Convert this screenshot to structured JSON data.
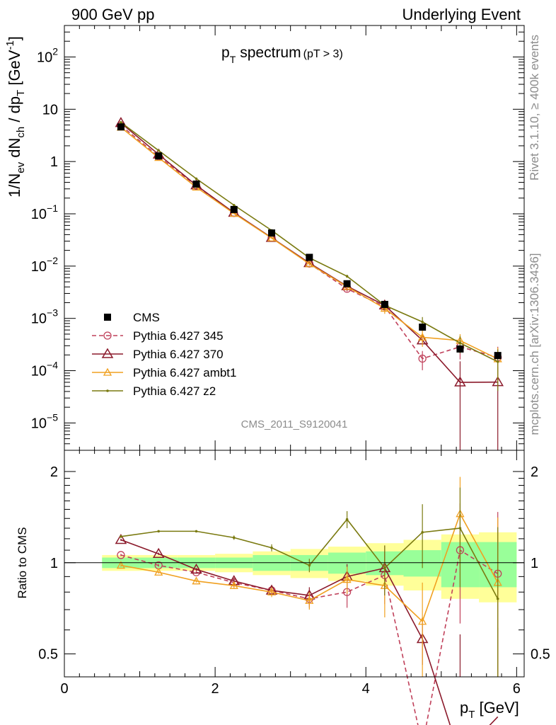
{
  "header": {
    "left": "900 GeV pp",
    "right": "Underlying Event",
    "plot_title": "p",
    "plot_title_sub": "T",
    "plot_title_rest": "spectrum",
    "plot_title_cut": "(pT >  3)",
    "analysis_id": "CMS_2011_S9120041",
    "rivet_note": "Rivet 3.1.10, ≥ 400k events",
    "mcplots_note": "mcplots.cern.ch [arXiv:1306.3436]"
  },
  "axes": {
    "ylabel_main": "1/N_ev dN_ch / dp_T [GeV^-1]",
    "ylabel_main_parts": [
      "1/N",
      "ev",
      " dN",
      "ch",
      " / dp",
      "T",
      " [GeV",
      "-1",
      "]"
    ],
    "ylabel_ratio": "Ratio to CMS",
    "xlabel": "p",
    "xlabel_sub": "T",
    "xlabel_rest": " [GeV]",
    "x_ticks": [
      "0",
      "2",
      "4",
      "6"
    ],
    "y_main_ticks": [
      "10",
      "10",
      "1",
      "10",
      "10",
      "10",
      "10",
      "10"
    ],
    "y_ratio_ticks": [
      "0.5",
      "1",
      "2"
    ]
  },
  "chart_data": {
    "type": "scatter",
    "x_range": [
      0,
      6.1
    ],
    "main": {
      "y_scale": "log",
      "y_range": [
        3e-06,
        400
      ],
      "y_ticks": [
        {
          "base": "10",
          "exp": "2",
          "value": 100
        },
        {
          "base": "10",
          "exp": "",
          "value": 10
        },
        {
          "base": "1",
          "exp": "",
          "value": 1
        },
        {
          "base": "10",
          "exp": "−1",
          "value": 0.1
        },
        {
          "base": "10",
          "exp": "−2",
          "value": 0.01
        },
        {
          "base": "10",
          "exp": "−3",
          "value": 0.001
        },
        {
          "base": "10",
          "exp": "−4",
          "value": 0.0001
        },
        {
          "base": "10",
          "exp": "−5",
          "value": 1e-05
        }
      ]
    },
    "ratio": {
      "y_scale": "log",
      "y_range": [
        0.42,
        2.35
      ],
      "y_ticks": [
        0.5,
        1,
        2
      ]
    },
    "x": [
      0.75,
      1.25,
      1.75,
      2.25,
      2.75,
      3.25,
      3.75,
      4.25,
      4.75,
      5.25,
      5.75
    ],
    "x_edges": [
      0.5,
      1.0,
      1.5,
      2.0,
      2.5,
      3.0,
      3.5,
      4.0,
      4.5,
      5.0,
      5.5,
      6.0
    ],
    "data": {
      "name": "CMS",
      "values": [
        4.6,
        1.28,
        0.37,
        0.121,
        0.043,
        0.0147,
        0.0046,
        0.00185,
        0.00068,
        0.00026,
        0.000195
      ],
      "band_inner": [
        0.04,
        0.04,
        0.04,
        0.04,
        0.06,
        0.06,
        0.08,
        0.09,
        0.1,
        0.17,
        0.17
      ],
      "band_outer": [
        0.06,
        0.06,
        0.06,
        0.07,
        0.09,
        0.11,
        0.13,
        0.16,
        0.19,
        0.24,
        0.26
      ]
    },
    "series": [
      {
        "name": "Pythia 6.427 345",
        "color": "#c0405a",
        "style": "dashed",
        "marker": "circle",
        "ratio": [
          1.06,
          0.98,
          0.93,
          0.86,
          0.81,
          0.76,
          0.8,
          0.91,
          0.25,
          1.1,
          0.92
        ],
        "ratio_err": [
          0.01,
          0.01,
          0.01,
          0.02,
          0.03,
          0.05,
          0.09,
          0.18,
          0.1,
          0.47,
          0.55
        ]
      },
      {
        "name": "Pythia 6.427 370",
        "color": "#8b1a2b",
        "style": "solid",
        "marker": "triangle-open",
        "ratio": [
          1.19,
          1.07,
          0.95,
          0.87,
          0.81,
          0.78,
          0.9,
          0.96,
          0.56,
          0.23,
          0.31
        ],
        "ratio_err": [
          0.01,
          0.01,
          0.01,
          0.02,
          0.03,
          0.05,
          0.09,
          0.18,
          0.1,
          0.35,
          0.3
        ]
      },
      {
        "name": "Pythia 6.427 ambt1",
        "color": "#f0a020",
        "style": "solid",
        "marker": "triangle-small",
        "ratio": [
          0.98,
          0.93,
          0.87,
          0.84,
          0.8,
          0.75,
          0.88,
          0.84,
          0.64,
          1.45,
          0.86
        ],
        "ratio_err": [
          0.01,
          0.01,
          0.01,
          0.02,
          0.03,
          0.05,
          0.09,
          0.18,
          0.22,
          0.47,
          0.55
        ]
      },
      {
        "name": "Pythia 6.427 z2",
        "color": "#7a7a10",
        "style": "solid",
        "marker": "dot",
        "ratio": [
          1.22,
          1.27,
          1.27,
          1.21,
          1.12,
          0.98,
          1.39,
          0.96,
          1.26,
          1.3,
          0.76
        ],
        "ratio_err": [
          0.01,
          0.01,
          0.01,
          0.02,
          0.03,
          0.05,
          0.09,
          0.18,
          0.3,
          0.47,
          0.55
        ]
      }
    ],
    "legend": {
      "placement": "lower-left",
      "entries": [
        "CMS",
        "Pythia 6.427 345",
        "Pythia 6.427 370",
        "Pythia 6.427 ambt1",
        "Pythia 6.427 z2"
      ]
    }
  }
}
